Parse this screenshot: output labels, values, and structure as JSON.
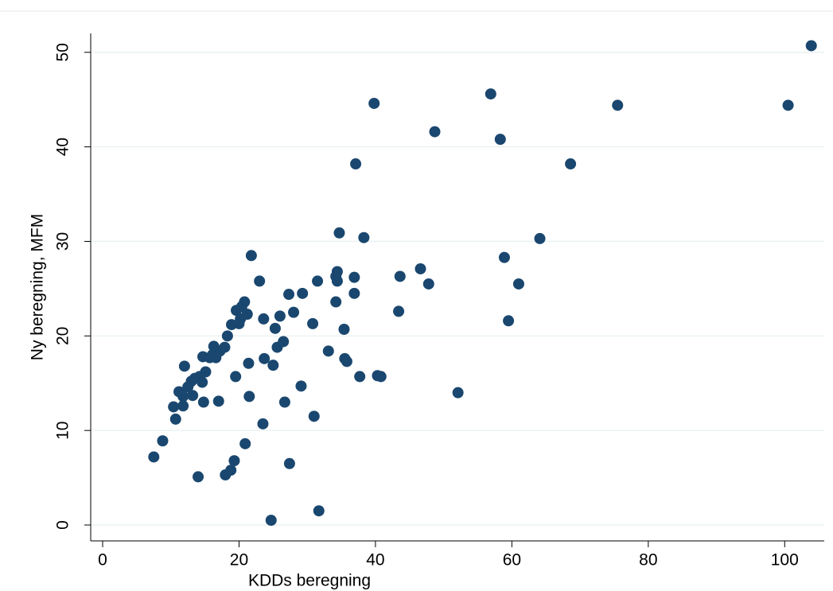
{
  "chart_data": {
    "type": "scatter",
    "x_label": "KDDs beregning",
    "y_label": "Ny beregning, MFM",
    "color": "#1a476f",
    "grid": true,
    "xlim": [
      -1.75,
      105.8
    ],
    "ylim": [
      -1.68,
      52
    ],
    "xticks": [
      0,
      20,
      40,
      60,
      80,
      100
    ],
    "yticks": [
      0,
      10,
      20,
      30,
      40,
      50
    ],
    "x": [
      7.5,
      8.8,
      10.4,
      10.7,
      11.2,
      11.8,
      11.8,
      12.0,
      12.5,
      13.0,
      13.2,
      13.5,
      14.0,
      14.2,
      14.6,
      14.7,
      14.8,
      15.1,
      15.7,
      16.1,
      16.3,
      16.6,
      17.0,
      17.2,
      17.9,
      18.0,
      18.3,
      18.8,
      18.9,
      19.3,
      19.5,
      19.6,
      20.0,
      20.2,
      20.4,
      20.8,
      20.9,
      21.2,
      21.4,
      21.5,
      21.8,
      23.0,
      23.5,
      23.6,
      23.7,
      24.7,
      25.0,
      25.3,
      25.6,
      26.0,
      26.5,
      26.7,
      27.3,
      27.4,
      28.0,
      29.1,
      29.3,
      30.8,
      31.0,
      31.5,
      31.7,
      33.1,
      34.2,
      34.2,
      34.4,
      34.4,
      34.7,
      35.4,
      35.5,
      35.8,
      36.9,
      36.9,
      37.1,
      37.7,
      38.3,
      39.8,
      40.3,
      40.8,
      43.4,
      43.6,
      46.6,
      47.8,
      48.7,
      52.1,
      56.9,
      58.3,
      58.9,
      59.5,
      61.0,
      64.1,
      68.6,
      75.5,
      100.5,
      103.9
    ],
    "values": [
      7.2,
      8.9,
      12.5,
      11.2,
      14.1,
      13.6,
      12.6,
      16.8,
      14.6,
      15.2,
      13.7,
      15.5,
      5.1,
      15.7,
      15.1,
      17.8,
      13.0,
      16.2,
      17.7,
      18.0,
      18.9,
      17.7,
      13.1,
      18.4,
      18.8,
      5.3,
      20.0,
      5.8,
      21.2,
      6.8,
      15.7,
      22.7,
      21.3,
      21.8,
      23.1,
      23.6,
      8.6,
      22.3,
      17.1,
      13.6,
      28.5,
      25.8,
      10.7,
      21.8,
      17.6,
      0.5,
      16.9,
      20.8,
      18.8,
      22.1,
      19.4,
      13.0,
      24.4,
      6.5,
      22.5,
      14.7,
      24.5,
      21.3,
      11.5,
      25.8,
      1.5,
      18.4,
      23.6,
      26.3,
      26.8,
      25.8,
      30.9,
      20.7,
      17.6,
      17.3,
      26.2,
      24.5,
      38.2,
      15.7,
      30.4,
      44.6,
      15.8,
      15.7,
      22.6,
      26.3,
      27.1,
      25.5,
      41.6,
      14.0,
      45.6,
      40.8,
      28.3,
      21.6,
      25.5,
      30.3,
      38.2,
      44.4,
      44.4,
      50.7
    ]
  }
}
